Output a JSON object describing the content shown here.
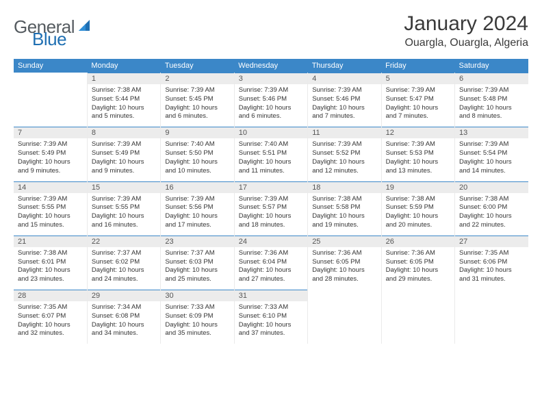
{
  "brand": {
    "name": "General",
    "accent_word": "Blue"
  },
  "title": "January 2024",
  "location": "Ouargla, Ouargla, Algeria",
  "colors": {
    "header_bg": "#3b87c8",
    "header_fg": "#ffffff",
    "daynum_bg": "#ececec",
    "daynum_fg": "#555555",
    "border_top": "#3b87c8",
    "cell_border": "#eaeaea",
    "text": "#333333",
    "logo_gray": "#555b60",
    "logo_blue": "#1f6fb2"
  },
  "typography": {
    "title_fontsize": 30,
    "location_fontsize": 16,
    "dayheader_fontsize": 11,
    "daynum_fontsize": 11,
    "body_fontsize": 9.5,
    "logo_fontsize": 26
  },
  "day_headers": [
    "Sunday",
    "Monday",
    "Tuesday",
    "Wednesday",
    "Thursday",
    "Friday",
    "Saturday"
  ],
  "weeks": [
    [
      null,
      {
        "n": "1",
        "sunrise": "7:38 AM",
        "sunset": "5:44 PM",
        "daylight": "10 hours and 5 minutes."
      },
      {
        "n": "2",
        "sunrise": "7:39 AM",
        "sunset": "5:45 PM",
        "daylight": "10 hours and 6 minutes."
      },
      {
        "n": "3",
        "sunrise": "7:39 AM",
        "sunset": "5:46 PM",
        "daylight": "10 hours and 6 minutes."
      },
      {
        "n": "4",
        "sunrise": "7:39 AM",
        "sunset": "5:46 PM",
        "daylight": "10 hours and 7 minutes."
      },
      {
        "n": "5",
        "sunrise": "7:39 AM",
        "sunset": "5:47 PM",
        "daylight": "10 hours and 7 minutes."
      },
      {
        "n": "6",
        "sunrise": "7:39 AM",
        "sunset": "5:48 PM",
        "daylight": "10 hours and 8 minutes."
      }
    ],
    [
      {
        "n": "7",
        "sunrise": "7:39 AM",
        "sunset": "5:49 PM",
        "daylight": "10 hours and 9 minutes."
      },
      {
        "n": "8",
        "sunrise": "7:39 AM",
        "sunset": "5:49 PM",
        "daylight": "10 hours and 9 minutes."
      },
      {
        "n": "9",
        "sunrise": "7:40 AM",
        "sunset": "5:50 PM",
        "daylight": "10 hours and 10 minutes."
      },
      {
        "n": "10",
        "sunrise": "7:40 AM",
        "sunset": "5:51 PM",
        "daylight": "10 hours and 11 minutes."
      },
      {
        "n": "11",
        "sunrise": "7:39 AM",
        "sunset": "5:52 PM",
        "daylight": "10 hours and 12 minutes."
      },
      {
        "n": "12",
        "sunrise": "7:39 AM",
        "sunset": "5:53 PM",
        "daylight": "10 hours and 13 minutes."
      },
      {
        "n": "13",
        "sunrise": "7:39 AM",
        "sunset": "5:54 PM",
        "daylight": "10 hours and 14 minutes."
      }
    ],
    [
      {
        "n": "14",
        "sunrise": "7:39 AM",
        "sunset": "5:55 PM",
        "daylight": "10 hours and 15 minutes."
      },
      {
        "n": "15",
        "sunrise": "7:39 AM",
        "sunset": "5:55 PM",
        "daylight": "10 hours and 16 minutes."
      },
      {
        "n": "16",
        "sunrise": "7:39 AM",
        "sunset": "5:56 PM",
        "daylight": "10 hours and 17 minutes."
      },
      {
        "n": "17",
        "sunrise": "7:39 AM",
        "sunset": "5:57 PM",
        "daylight": "10 hours and 18 minutes."
      },
      {
        "n": "18",
        "sunrise": "7:38 AM",
        "sunset": "5:58 PM",
        "daylight": "10 hours and 19 minutes."
      },
      {
        "n": "19",
        "sunrise": "7:38 AM",
        "sunset": "5:59 PM",
        "daylight": "10 hours and 20 minutes."
      },
      {
        "n": "20",
        "sunrise": "7:38 AM",
        "sunset": "6:00 PM",
        "daylight": "10 hours and 22 minutes."
      }
    ],
    [
      {
        "n": "21",
        "sunrise": "7:38 AM",
        "sunset": "6:01 PM",
        "daylight": "10 hours and 23 minutes."
      },
      {
        "n": "22",
        "sunrise": "7:37 AM",
        "sunset": "6:02 PM",
        "daylight": "10 hours and 24 minutes."
      },
      {
        "n": "23",
        "sunrise": "7:37 AM",
        "sunset": "6:03 PM",
        "daylight": "10 hours and 25 minutes."
      },
      {
        "n": "24",
        "sunrise": "7:36 AM",
        "sunset": "6:04 PM",
        "daylight": "10 hours and 27 minutes."
      },
      {
        "n": "25",
        "sunrise": "7:36 AM",
        "sunset": "6:05 PM",
        "daylight": "10 hours and 28 minutes."
      },
      {
        "n": "26",
        "sunrise": "7:36 AM",
        "sunset": "6:05 PM",
        "daylight": "10 hours and 29 minutes."
      },
      {
        "n": "27",
        "sunrise": "7:35 AM",
        "sunset": "6:06 PM",
        "daylight": "10 hours and 31 minutes."
      }
    ],
    [
      {
        "n": "28",
        "sunrise": "7:35 AM",
        "sunset": "6:07 PM",
        "daylight": "10 hours and 32 minutes."
      },
      {
        "n": "29",
        "sunrise": "7:34 AM",
        "sunset": "6:08 PM",
        "daylight": "10 hours and 34 minutes."
      },
      {
        "n": "30",
        "sunrise": "7:33 AM",
        "sunset": "6:09 PM",
        "daylight": "10 hours and 35 minutes."
      },
      {
        "n": "31",
        "sunrise": "7:33 AM",
        "sunset": "6:10 PM",
        "daylight": "10 hours and 37 minutes."
      },
      null,
      null,
      null
    ]
  ],
  "labels": {
    "sunrise": "Sunrise:",
    "sunset": "Sunset:",
    "daylight": "Daylight:"
  }
}
